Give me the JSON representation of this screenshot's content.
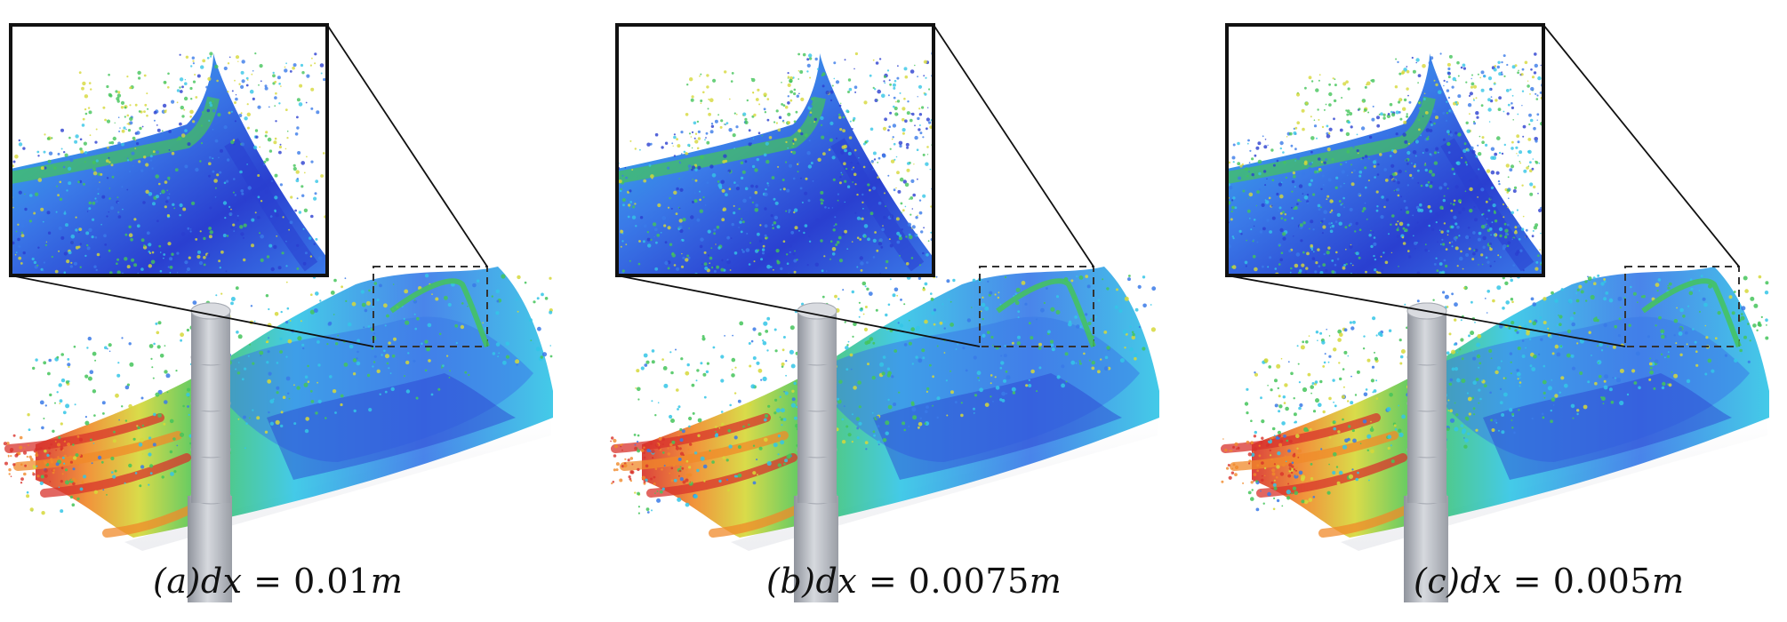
{
  "figure": {
    "panels": [
      {
        "label": "(a)",
        "variable": "dx",
        "relation": "=",
        "value": "0.01",
        "unit": "m"
      },
      {
        "label": "(b)",
        "variable": "dx",
        "relation": "=",
        "value": "0.0075",
        "unit": "m"
      },
      {
        "label": "(c)",
        "variable": "dx",
        "relation": "=",
        "value": "0.005",
        "unit": "m"
      }
    ],
    "colors": {
      "deep_blue": "#2a3fd0",
      "blue": "#3a7ae8",
      "cyan": "#34c6e6",
      "green": "#44c45a",
      "yellow": "#d6d83a",
      "orange": "#f08a2a",
      "red": "#d8332c",
      "pillar": "#b8bcc4"
    }
  }
}
